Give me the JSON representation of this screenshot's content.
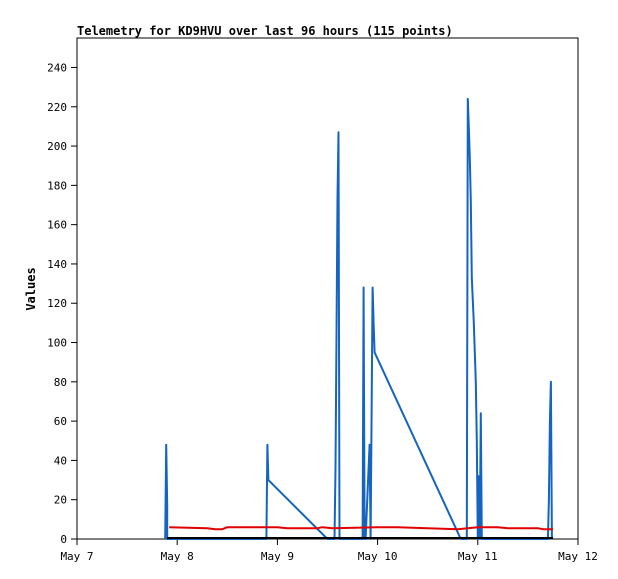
{
  "chart_data": {
    "type": "line",
    "title": "Telemetry for KD9HVU over last 96 hours (115 points)",
    "xlabel": "",
    "ylabel": "Values",
    "x_axis": {
      "start": "May 7",
      "end": "May 12",
      "ticks": [
        {
          "label": "May 7",
          "day": 0
        },
        {
          "label": "May 8",
          "day": 1
        },
        {
          "label": "May 9",
          "day": 2
        },
        {
          "label": "May 10",
          "day": 3
        },
        {
          "label": "May 11",
          "day": 4
        },
        {
          "label": "May 12",
          "day": 5
        }
      ]
    },
    "ylim": [
      0,
      255
    ],
    "yticks": [
      0,
      20,
      40,
      60,
      80,
      100,
      120,
      140,
      160,
      180,
      200,
      220,
      240
    ],
    "grid": false,
    "legend": "none",
    "series": [
      {
        "color": "#1464c0",
        "points": [
          [
            0.88,
            0
          ],
          [
            0.89,
            48
          ],
          [
            0.9,
            17
          ],
          [
            0.9,
            0
          ],
          [
            1.89,
            0
          ],
          [
            1.9,
            48
          ],
          [
            1.91,
            30
          ],
          [
            2.5,
            0
          ],
          [
            2.57,
            0
          ],
          [
            2.58,
            36
          ],
          [
            2.59,
            104
          ],
          [
            2.6,
            174
          ],
          [
            2.61,
            207
          ],
          [
            2.62,
            0
          ],
          [
            2.85,
            0
          ],
          [
            2.86,
            128
          ],
          [
            2.87,
            0
          ],
          [
            2.88,
            0
          ],
          [
            2.92,
            48
          ],
          [
            2.93,
            0
          ],
          [
            2.95,
            128
          ],
          [
            2.96,
            110
          ],
          [
            2.97,
            95
          ],
          [
            3.83,
            0
          ],
          [
            3.89,
            0
          ],
          [
            3.9,
            224
          ],
          [
            3.91,
            210
          ],
          [
            3.92,
            194
          ],
          [
            3.93,
            172
          ],
          [
            3.94,
            133
          ],
          [
            3.96,
            110
          ],
          [
            3.98,
            80
          ],
          [
            3.99,
            50
          ],
          [
            4.0,
            0
          ],
          [
            4.01,
            32
          ],
          [
            4.02,
            0
          ],
          [
            4.03,
            64
          ],
          [
            4.04,
            0
          ],
          [
            4.7,
            0
          ],
          [
            4.71,
            20
          ],
          [
            4.72,
            60
          ],
          [
            4.73,
            80
          ],
          [
            4.74,
            0
          ]
        ]
      },
      {
        "color": "#e00000",
        "points": [
          [
            0.92,
            6
          ],
          [
            1.3,
            5.5
          ],
          [
            1.38,
            5
          ],
          [
            1.45,
            5
          ],
          [
            1.5,
            6
          ],
          [
            2.0,
            6
          ],
          [
            2.1,
            5.5
          ],
          [
            2.4,
            5.5
          ],
          [
            2.45,
            6
          ],
          [
            2.55,
            5.5
          ],
          [
            3.0,
            6
          ],
          [
            3.2,
            6
          ],
          [
            3.5,
            5.5
          ],
          [
            3.8,
            5
          ],
          [
            4.0,
            6
          ],
          [
            4.2,
            6
          ],
          [
            4.3,
            5.5
          ],
          [
            4.6,
            5.5
          ],
          [
            4.65,
            5
          ],
          [
            4.75,
            5
          ]
        ]
      },
      {
        "color": "#000000",
        "points": [
          [
            0.9,
            0.5
          ],
          [
            4.75,
            0.5
          ]
        ]
      }
    ]
  }
}
